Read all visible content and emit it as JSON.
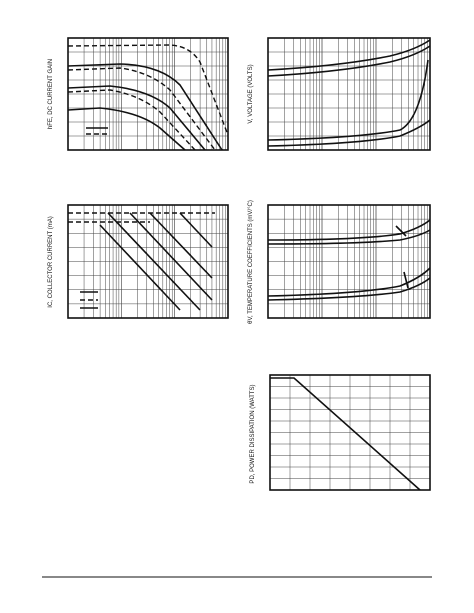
{
  "graphs": [
    {
      "y_label": "hFE, DC CURRENT GAIN"
    },
    {
      "y_label": "V, VOLTAGE (VOLTS)"
    },
    {
      "y_label": "IC, COLLECTOR CURRENT (mA)"
    },
    {
      "y_label": "θV, TEMPERATURE COEFFICIENTS (mV/°C)"
    },
    {
      "y_label": "PD, POWER DISSIPATION (WATTS)"
    }
  ]
}
